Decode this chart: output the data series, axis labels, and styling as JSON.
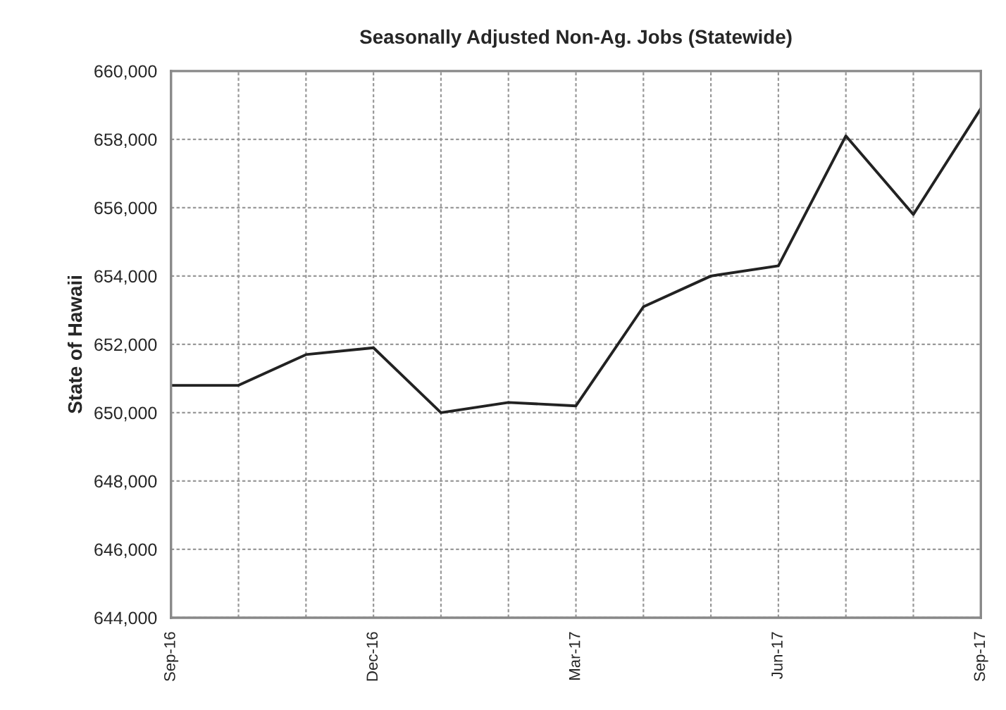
{
  "chart_data": {
    "type": "line",
    "title": "Seasonally Adjusted Non-Ag. Jobs (Statewide)",
    "ylabel": "State of Hawaii",
    "categories": [
      "Sep-16",
      null,
      null,
      "Dec-16",
      null,
      null,
      "Mar-17",
      null,
      null,
      "Jun-17",
      null,
      null,
      "Sep-17"
    ],
    "series": [
      {
        "color": "#222222",
        "values": [
          650800,
          650800,
          651700,
          651900,
          650000,
          650300,
          650200,
          653100,
          654000,
          654300,
          658100,
          655800,
          658900
        ]
      }
    ],
    "ylim": [
      644000,
      660000
    ],
    "yticks": [
      {
        "value": 644000,
        "label": "644,000"
      },
      {
        "value": 646000,
        "label": "646,000"
      },
      {
        "value": 648000,
        "label": "648,000"
      },
      {
        "value": 650000,
        "label": "650,000"
      },
      {
        "value": 652000,
        "label": "652,000"
      },
      {
        "value": 654000,
        "label": "654,000"
      },
      {
        "value": 656000,
        "label": "656,000"
      },
      {
        "value": 658000,
        "label": "658,000"
      },
      {
        "value": 660000,
        "label": "660,000"
      }
    ],
    "grid": true,
    "marker": "none",
    "line_style": "solid"
  }
}
